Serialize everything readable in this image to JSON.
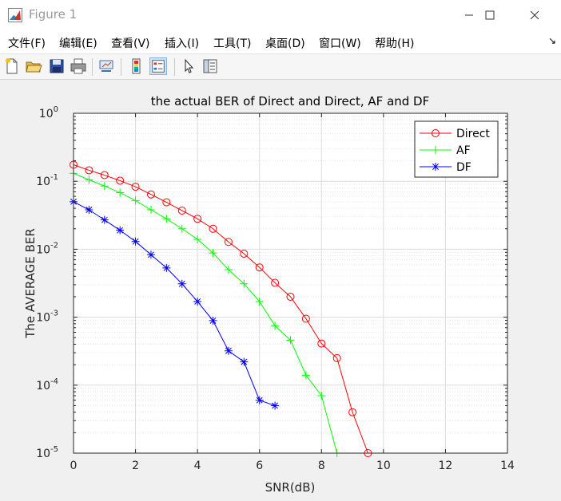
{
  "window": {
    "title": "Figure 1"
  },
  "menu": [
    "文件(F)",
    "编辑(E)",
    "查看(V)",
    "插入(I)",
    "工具(T)",
    "桌面(D)",
    "窗口(W)",
    "帮助(H)"
  ],
  "toolbar_icons": [
    "new-file-icon",
    "open-folder-icon",
    "save-icon",
    "print-icon",
    "link-plot-icon",
    "colorbar-icon",
    "legend-icon",
    "pointer-icon",
    "property-inspector-icon"
  ],
  "chart_data": {
    "type": "line",
    "title": "the actual BER of Direct and Direct, AF and DF",
    "xlabel": "SNR(dB)",
    "ylabel": "The AVERAGE BER",
    "xlim": [
      0,
      14
    ],
    "ylim": [
      1e-05,
      1
    ],
    "yscale": "log",
    "grid": true,
    "legend_position": "top-right",
    "x_ticks": [
      "0",
      "2",
      "4",
      "6",
      "8",
      "10",
      "12",
      "14"
    ],
    "y_ticks": [
      {
        "base": "10",
        "exp": "0"
      },
      {
        "base": "10",
        "exp": "-1"
      },
      {
        "base": "10",
        "exp": "-2"
      },
      {
        "base": "10",
        "exp": "-3"
      },
      {
        "base": "10",
        "exp": "-4"
      },
      {
        "base": "10",
        "exp": "-5"
      }
    ],
    "series": [
      {
        "name": "Direct",
        "color": "#ff0000",
        "marker": "circle",
        "x": [
          0,
          0.5,
          1,
          1.5,
          2,
          2.5,
          3,
          3.5,
          4,
          4.5,
          5,
          5.5,
          6,
          6.5,
          7,
          7.5,
          8,
          8.5,
          9,
          9.5
        ],
        "y": [
          0.175,
          0.145,
          0.123,
          0.102,
          0.083,
          0.064,
          0.049,
          0.037,
          0.028,
          0.02,
          0.0128,
          0.0086,
          0.0054,
          0.0032,
          0.002,
          0.00095,
          0.00041,
          0.00025,
          4e-05,
          1e-05
        ]
      },
      {
        "name": "AF",
        "color": "#00ff00",
        "marker": "plus",
        "x": [
          0,
          0.5,
          1,
          1.5,
          2,
          2.5,
          3,
          3.5,
          4,
          4.5,
          5,
          5.5,
          6,
          6.5,
          7,
          7.5,
          8,
          8.5
        ],
        "y": [
          0.131,
          0.105,
          0.085,
          0.068,
          0.052,
          0.038,
          0.028,
          0.02,
          0.014,
          0.0088,
          0.005,
          0.0031,
          0.0017,
          0.00075,
          0.00046,
          0.00014,
          7e-05,
          1e-05
        ]
      },
      {
        "name": "DF",
        "color": "#0000ff",
        "marker": "asterisk",
        "x": [
          0,
          0.5,
          1,
          1.5,
          2,
          2.5,
          3,
          3.5,
          4,
          4.5,
          5,
          5.5,
          6,
          6.5
        ],
        "y": [
          0.05,
          0.038,
          0.027,
          0.019,
          0.013,
          0.0083,
          0.0053,
          0.0031,
          0.0017,
          0.00089,
          0.00032,
          0.00022,
          6e-05,
          5e-05
        ]
      }
    ]
  }
}
